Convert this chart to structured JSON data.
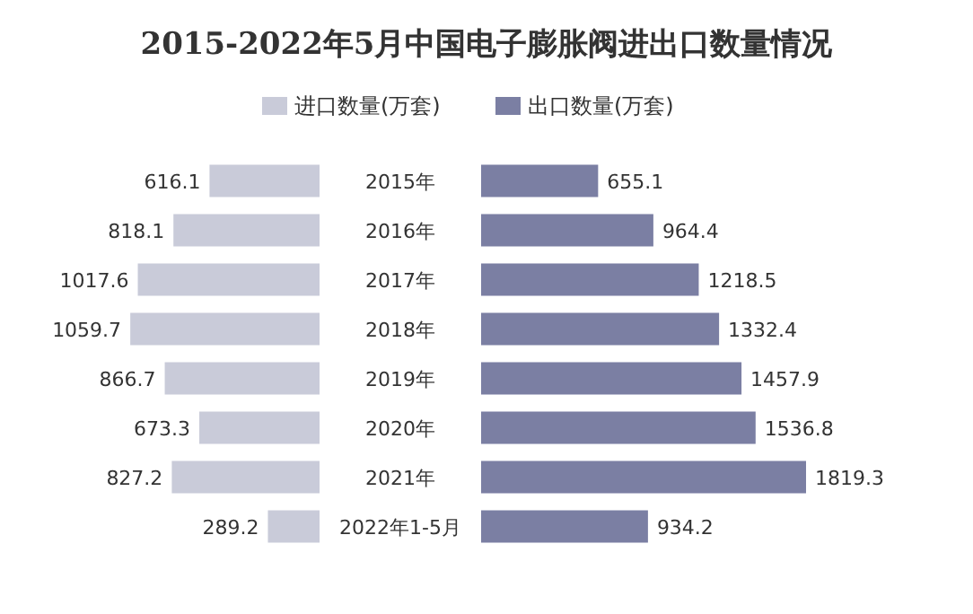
{
  "chart_data": [
    {
      "type": "bar",
      "orientation": "horizontal",
      "title": "2015-2022年5月中国电子膨胀阀进出口数量情况",
      "categories": [
        "2015年",
        "2016年",
        "2017年",
        "2018年",
        "2019年",
        "2020年",
        "2021年",
        "2022年1-5月"
      ],
      "series": [
        {
          "name": "进口数量(万套)",
          "color": "#c9cbd9",
          "values": [
            616.1,
            818.1,
            1017.6,
            1059.7,
            866.7,
            673.3,
            827.2,
            289.2
          ]
        }
      ],
      "data_labels": true,
      "legend": "top"
    },
    {
      "type": "bar",
      "orientation": "horizontal",
      "categories": [
        null,
        null,
        null,
        null,
        null,
        null,
        null,
        null
      ],
      "series": [
        {
          "name": "出口数量(万套)",
          "color": "#7b7fa3",
          "values": [
            655.1,
            964.4,
            1218.5,
            1332.4,
            1457.9,
            1536.8,
            1819.3,
            934.2
          ]
        }
      ],
      "data_labels": true,
      "legend": "top"
    }
  ]
}
